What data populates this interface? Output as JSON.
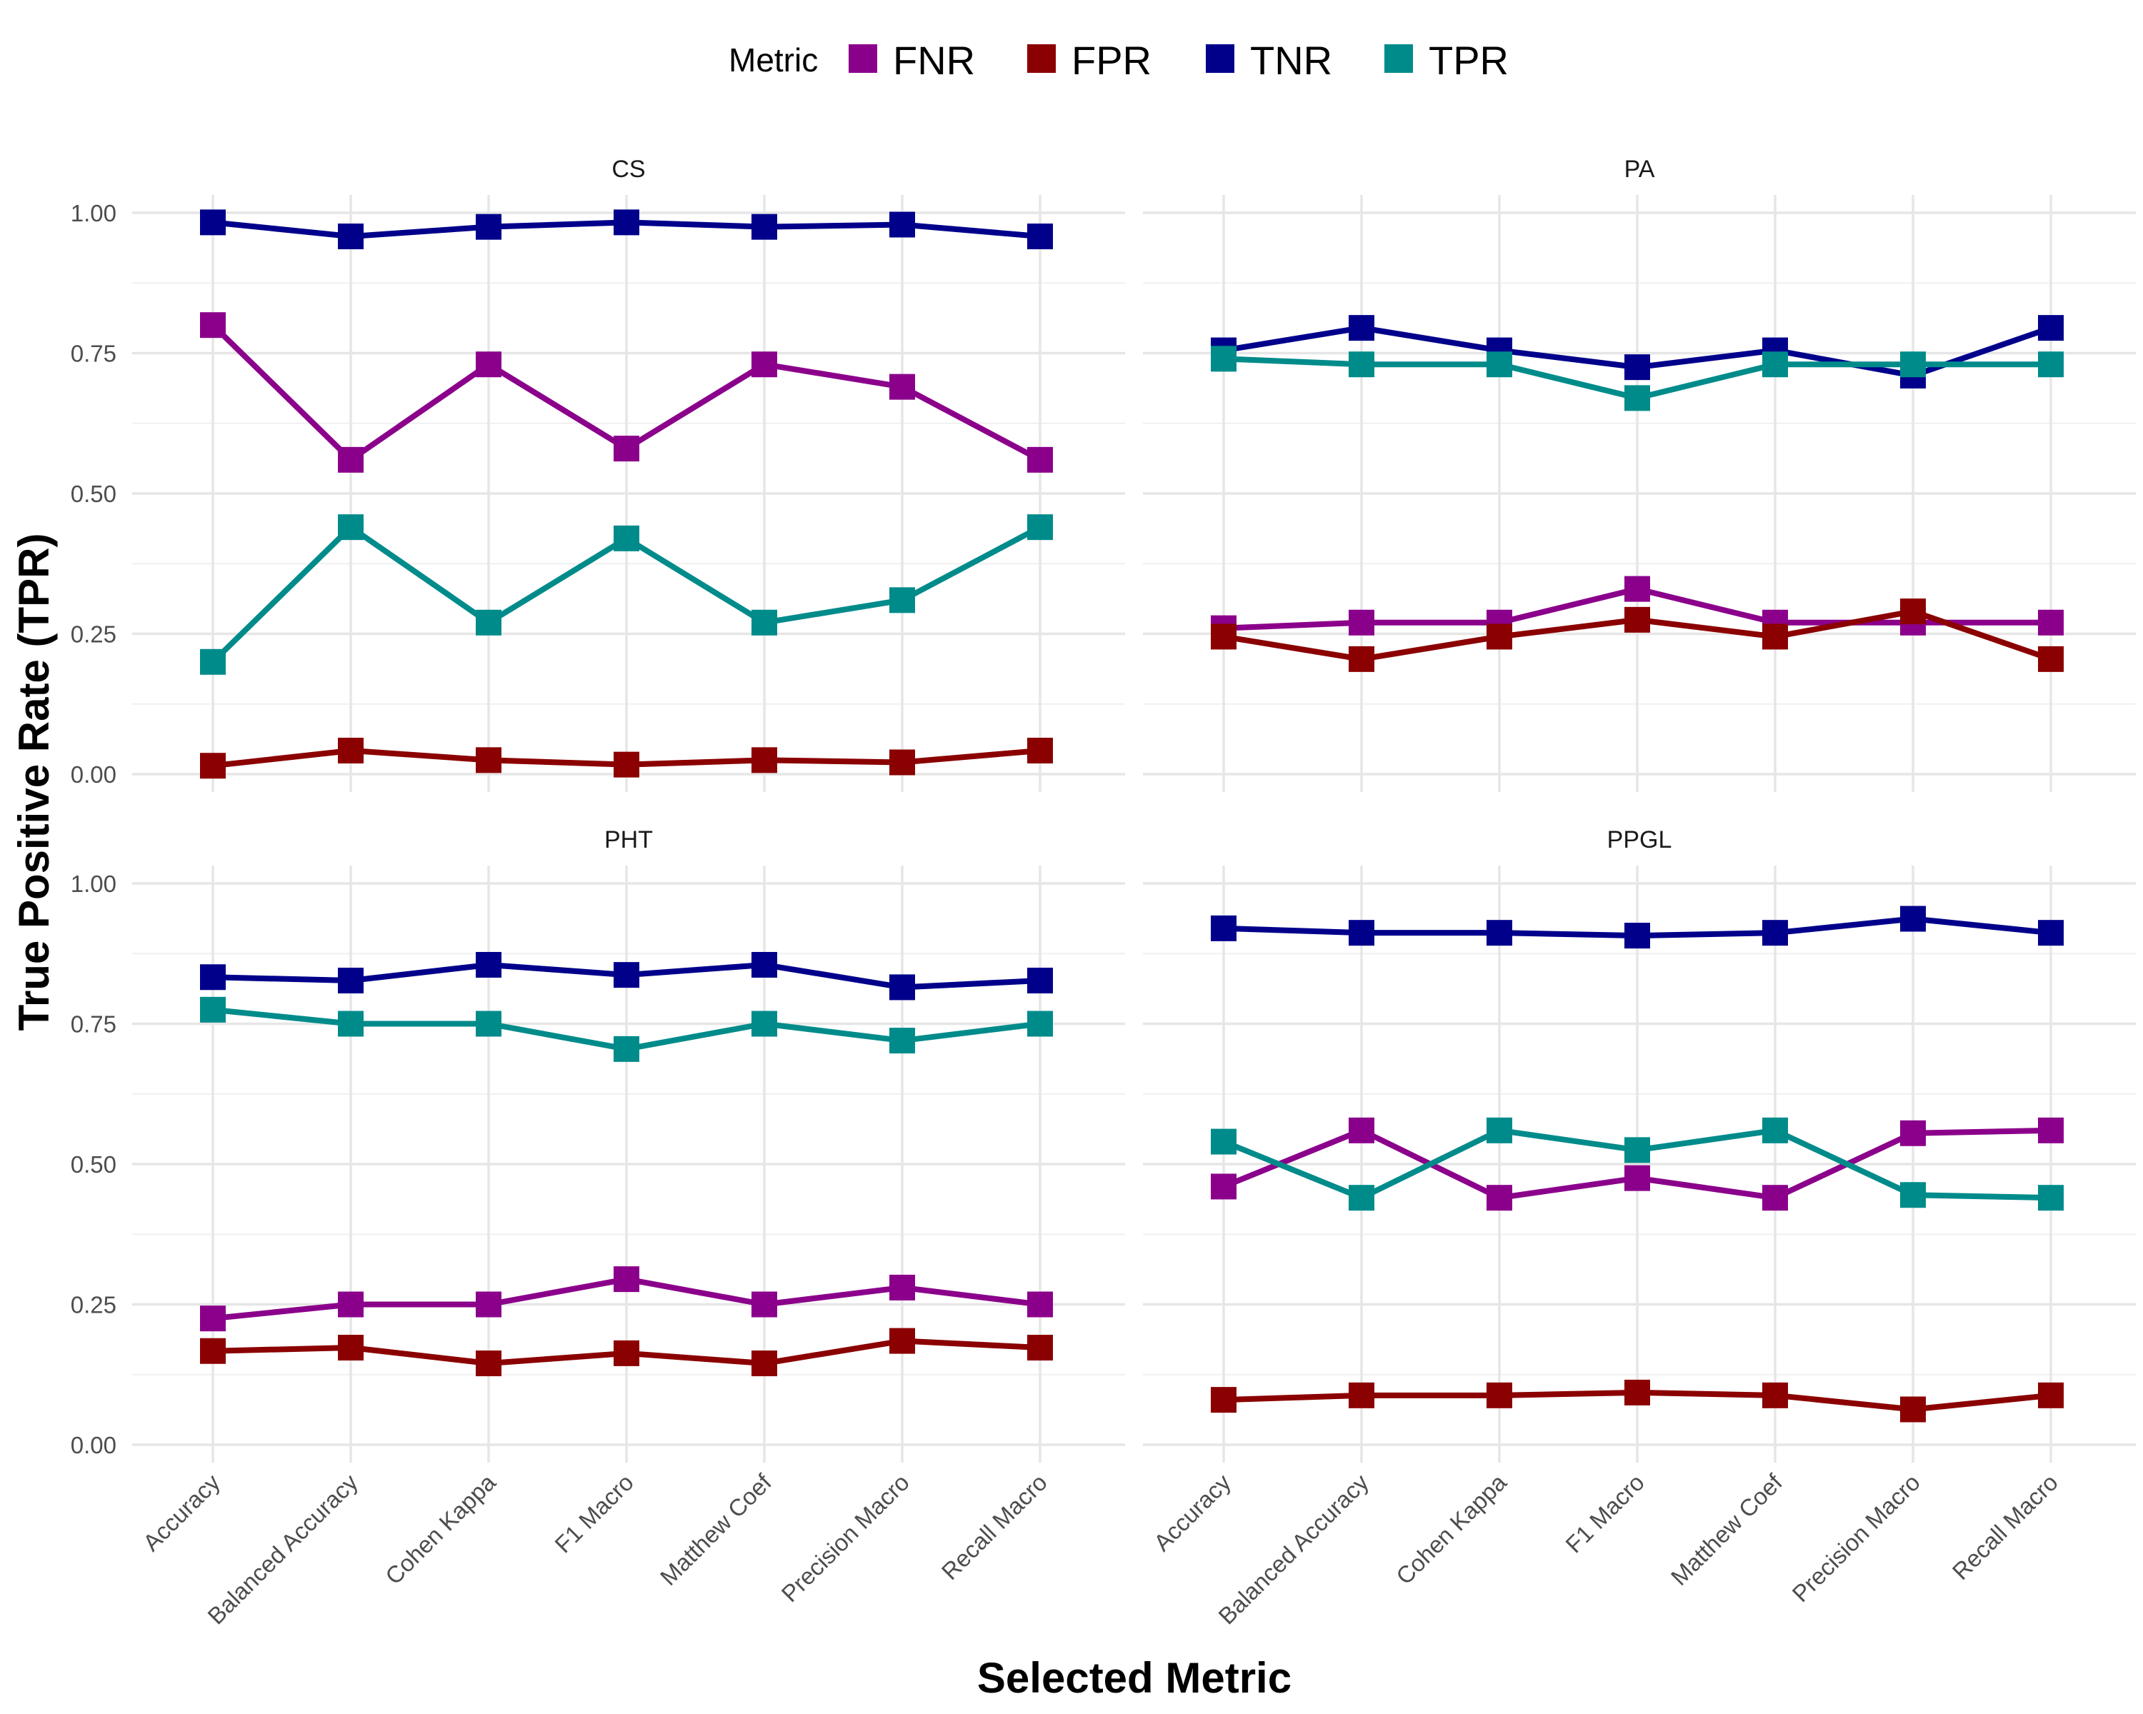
{
  "chart_data": {
    "type": "line",
    "xlabel": "Selected Metric",
    "ylabel": "True Positive Rate (TPR)",
    "ylim": [
      0,
      1
    ],
    "yticks": [
      "0.00",
      "0.25",
      "0.50",
      "0.75",
      "1.00"
    ],
    "grid": true,
    "legend": {
      "title": "Metric",
      "position": "top",
      "entries": [
        {
          "name": "FNR",
          "color": "#8B008B"
        },
        {
          "name": "FPR",
          "color": "#8B0000"
        },
        {
          "name": "TNR",
          "color": "#00008B"
        },
        {
          "name": "TPR",
          "color": "#008B8B"
        }
      ]
    },
    "categories": [
      "Accuracy",
      "Balanced Accuracy",
      "Cohen Kappa",
      "F1 Macro",
      "Matthew Coef",
      "Precision Macro",
      "Recall Macro"
    ],
    "panels": [
      {
        "title": "CS",
        "series": [
          {
            "name": "FNR",
            "values": [
              0.8,
              0.56,
              0.73,
              0.58,
              0.73,
              0.69,
              0.56
            ]
          },
          {
            "name": "FPR",
            "values": [
              0.015,
              0.042,
              0.025,
              0.017,
              0.025,
              0.021,
              0.042
            ]
          },
          {
            "name": "TNR",
            "values": [
              0.983,
              0.958,
              0.975,
              0.983,
              0.975,
              0.979,
              0.958
            ]
          },
          {
            "name": "TPR",
            "values": [
              0.2,
              0.44,
              0.27,
              0.42,
              0.27,
              0.31,
              0.44
            ]
          }
        ]
      },
      {
        "title": "PA",
        "series": [
          {
            "name": "FNR",
            "values": [
              0.26,
              0.27,
              0.27,
              0.33,
              0.27,
              0.27,
              0.27
            ]
          },
          {
            "name": "FPR",
            "values": [
              0.245,
              0.205,
              0.245,
              0.275,
              0.245,
              0.29,
              0.205
            ]
          },
          {
            "name": "TNR",
            "values": [
              0.755,
              0.795,
              0.755,
              0.725,
              0.755,
              0.71,
              0.795
            ]
          },
          {
            "name": "TPR",
            "values": [
              0.74,
              0.73,
              0.73,
              0.67,
              0.73,
              0.73,
              0.73
            ]
          }
        ]
      },
      {
        "title": "PHT",
        "series": [
          {
            "name": "FNR",
            "values": [
              0.225,
              0.25,
              0.25,
              0.295,
              0.25,
              0.28,
              0.25
            ]
          },
          {
            "name": "FPR",
            "values": [
              0.167,
              0.173,
              0.145,
              0.163,
              0.145,
              0.185,
              0.173
            ]
          },
          {
            "name": "TNR",
            "values": [
              0.833,
              0.827,
              0.855,
              0.837,
              0.855,
              0.815,
              0.827
            ]
          },
          {
            "name": "TPR",
            "values": [
              0.775,
              0.75,
              0.75,
              0.705,
              0.75,
              0.72,
              0.75
            ]
          }
        ]
      },
      {
        "title": "PPGL",
        "series": [
          {
            "name": "FNR",
            "values": [
              0.46,
              0.56,
              0.44,
              0.475,
              0.44,
              0.555,
              0.56
            ]
          },
          {
            "name": "FPR",
            "values": [
              0.08,
              0.088,
              0.088,
              0.093,
              0.088,
              0.063,
              0.088
            ]
          },
          {
            "name": "TNR",
            "values": [
              0.92,
              0.912,
              0.912,
              0.907,
              0.912,
              0.937,
              0.912
            ]
          },
          {
            "name": "TPR",
            "values": [
              0.54,
              0.44,
              0.56,
              0.525,
              0.56,
              0.445,
              0.44
            ]
          }
        ]
      }
    ]
  }
}
